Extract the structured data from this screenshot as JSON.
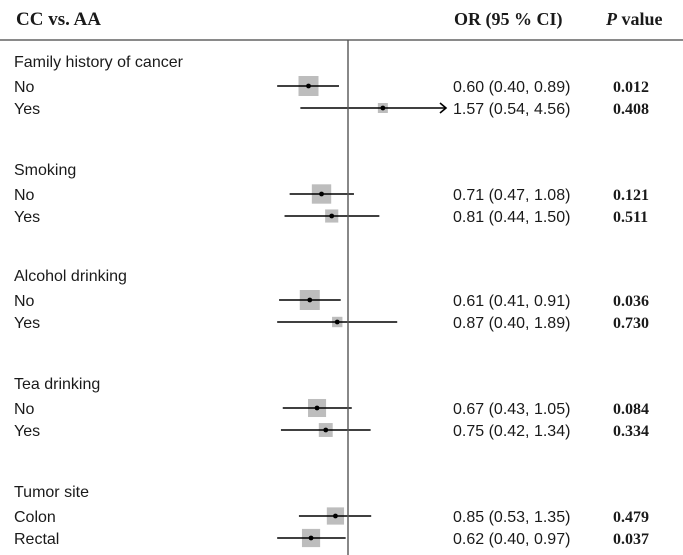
{
  "header": {
    "comparison": "CC vs. AA",
    "or_col": "OR (95 % CI)",
    "p_italic": "P",
    "p_rest": " value"
  },
  "chart_data": {
    "type": "forest",
    "reference_line": 1.0,
    "groups": [
      {
        "name": "Family history of cancer",
        "rows": [
          {
            "label": "No",
            "or": 0.6,
            "lo": 0.4,
            "hi": 0.89,
            "ci_text": "0.60 (0.40, 0.89)",
            "p": "0.012"
          },
          {
            "label": "Yes",
            "or": 1.57,
            "lo": 0.54,
            "hi": 4.56,
            "ci_text": "1.57 (0.54, 4.56)",
            "p": "0.408",
            "arrow_right": true
          }
        ]
      },
      {
        "name": "Smoking",
        "rows": [
          {
            "label": "No",
            "or": 0.71,
            "lo": 0.47,
            "hi": 1.08,
            "ci_text": "0.71 (0.47, 1.08)",
            "p": "0.121"
          },
          {
            "label": "Yes",
            "or": 0.81,
            "lo": 0.44,
            "hi": 1.5,
            "ci_text": "0.81 (0.44, 1.50)",
            "p": "0.511"
          }
        ]
      },
      {
        "name": "Alcohol drinking",
        "rows": [
          {
            "label": "No",
            "or": 0.61,
            "lo": 0.41,
            "hi": 0.91,
            "ci_text": "0.61 (0.41, 0.91)",
            "p": "0.036"
          },
          {
            "label": "Yes",
            "or": 0.87,
            "lo": 0.4,
            "hi": 1.89,
            "ci_text": "0.87 (0.40, 1.89)",
            "p": "0.730"
          }
        ]
      },
      {
        "name": "Tea drinking",
        "rows": [
          {
            "label": "No",
            "or": 0.67,
            "lo": 0.43,
            "hi": 1.05,
            "ci_text": "0.67 (0.43, 1.05)",
            "p": "0.084"
          },
          {
            "label": "Yes",
            "or": 0.75,
            "lo": 0.42,
            "hi": 1.34,
            "ci_text": "0.75 (0.42, 1.34)",
            "p": "0.334"
          }
        ]
      },
      {
        "name": "Tumor site",
        "rows": [
          {
            "label": "Colon",
            "or": 0.85,
            "lo": 0.53,
            "hi": 1.35,
            "ci_text": "0.85 (0.53, 1.35)",
            "p": "0.479"
          },
          {
            "label": "Rectal",
            "or": 0.62,
            "lo": 0.4,
            "hi": 0.97,
            "ci_text": "0.62 (0.40, 0.97)",
            "p": "0.037"
          }
        ]
      }
    ]
  },
  "colors": {
    "text": "#1a1a1a",
    "line": "#000000",
    "box": "#bdbdbd",
    "ref_line": "#555555"
  }
}
